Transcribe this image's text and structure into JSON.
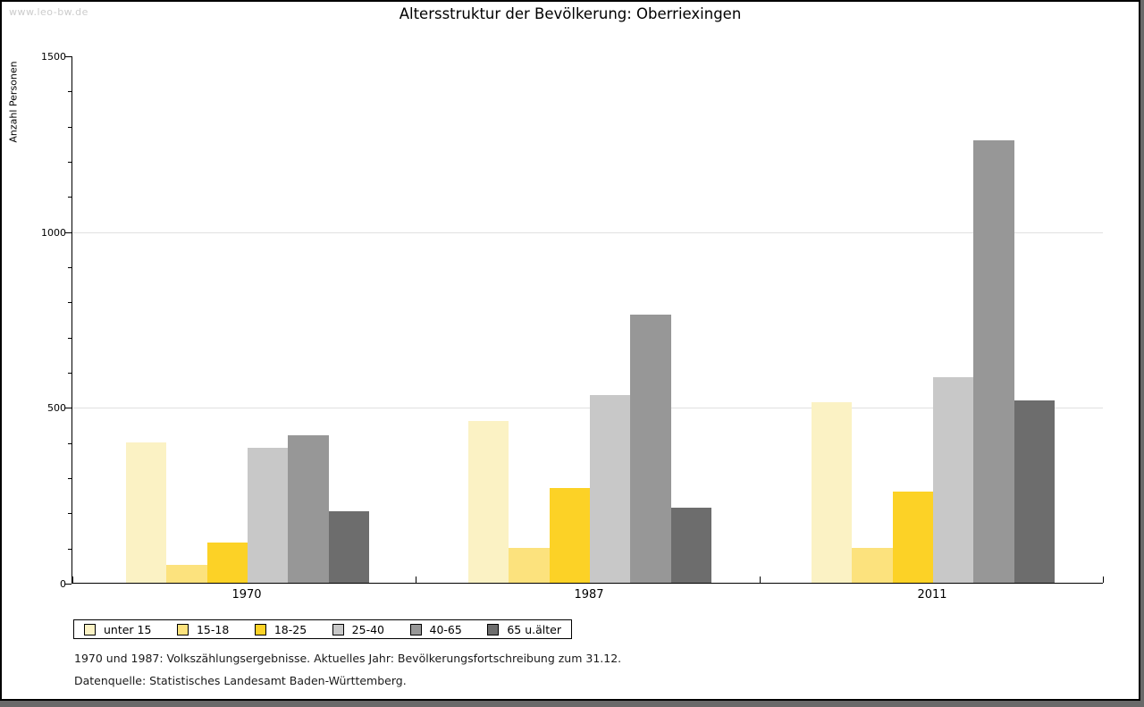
{
  "watermark": "www.leo-bw.de",
  "chart_data": {
    "type": "bar",
    "title": "Altersstruktur der Bevölkerung: Oberriexingen",
    "ylabel": "Anzahl Personen",
    "categories": [
      "1970",
      "1987",
      "2011"
    ],
    "series": [
      {
        "name": "unter 15",
        "color": "#FBF2C4",
        "values": [
          400,
          460,
          515
        ]
      },
      {
        "name": "15-18",
        "color": "#FCE27D",
        "values": [
          50,
          100,
          100
        ]
      },
      {
        "name": "18-25",
        "color": "#FCD226",
        "values": [
          115,
          270,
          260
        ]
      },
      {
        "name": "25-40",
        "color": "#C8C8C8",
        "values": [
          385,
          535,
          585
        ]
      },
      {
        "name": "40-65",
        "color": "#979797",
        "values": [
          420,
          765,
          1260
        ]
      },
      {
        "name": "65 u.älter",
        "color": "#6D6D6D",
        "values": [
          205,
          215,
          520
        ]
      }
    ],
    "ylim": [
      0,
      1500
    ],
    "yticks": [
      0,
      500,
      1000,
      1500
    ],
    "minor_tick_step": 100,
    "grid_values": [
      500,
      1000
    ],
    "grid_on": true,
    "legend_position": "bottom"
  },
  "colors": {
    "grid": "#E0E0E0",
    "axis": "#000000",
    "watermark": "#CCCCCC",
    "frame_shadow": "#696969"
  },
  "footnotes": [
    "1970 und 1987: Volkszählungsergebnisse. Aktuelles Jahr: Bevölkerungsfortschreibung zum 31.12.",
    "Datenquelle: Statistisches Landesamt Baden-Württemberg."
  ]
}
